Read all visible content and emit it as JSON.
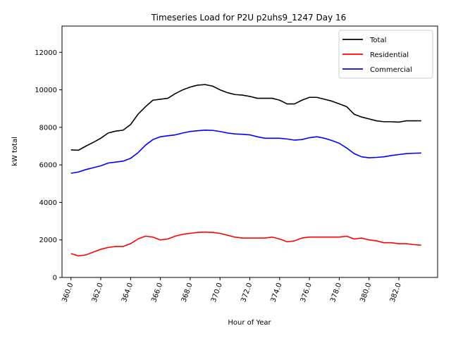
{
  "chart_data": {
    "type": "line",
    "title": "Timeseries Load for P2U p2uhs9_1247  Day 16",
    "xlabel": "Hour of Year",
    "ylabel": "kW total",
    "xlim": [
      359.4,
      384.6
    ],
    "ylim": [
      0,
      13400
    ],
    "x_ticks": [
      360,
      362,
      364,
      366,
      368,
      370,
      372,
      374,
      376,
      378,
      380,
      382
    ],
    "x_tick_labels": [
      "360.0",
      "362.0",
      "364.0",
      "366.0",
      "368.0",
      "370.0",
      "372.0",
      "374.0",
      "376.0",
      "378.0",
      "380.0",
      "382.0"
    ],
    "y_ticks": [
      0,
      2000,
      4000,
      6000,
      8000,
      10000,
      12000
    ],
    "y_tick_labels": [
      "0",
      "2000",
      "4000",
      "6000",
      "8000",
      "10000",
      "12000"
    ],
    "legend_position": "top-right",
    "x": [
      360.0,
      360.5,
      361.0,
      361.5,
      362.0,
      362.5,
      363.0,
      363.5,
      364.0,
      364.5,
      365.0,
      365.5,
      366.0,
      366.5,
      367.0,
      367.5,
      368.0,
      368.5,
      369.0,
      369.5,
      370.0,
      370.5,
      371.0,
      371.5,
      372.0,
      372.5,
      373.0,
      373.5,
      374.0,
      374.5,
      375.0,
      375.5,
      376.0,
      376.5,
      377.0,
      377.5,
      378.0,
      378.5,
      379.0,
      379.5,
      380.0,
      380.5,
      381.0,
      381.5,
      382.0,
      382.5,
      383.0,
      383.5
    ],
    "series": [
      {
        "name": "Total",
        "color": "#000000",
        "values": [
          6800,
          6780,
          7000,
          7200,
          7420,
          7700,
          7800,
          7850,
          8150,
          8700,
          9100,
          9450,
          9500,
          9550,
          9800,
          10000,
          10150,
          10250,
          10280,
          10200,
          10000,
          9850,
          9750,
          9720,
          9650,
          9550,
          9550,
          9550,
          9450,
          9250,
          9250,
          9450,
          9600,
          9600,
          9500,
          9400,
          9250,
          9100,
          8700,
          8550,
          8450,
          8350,
          8300,
          8300,
          8280,
          8350,
          8350,
          8350
        ]
      },
      {
        "name": "Residential",
        "color": "#ff0000",
        "values": [
          1270,
          1150,
          1200,
          1350,
          1500,
          1600,
          1650,
          1650,
          1800,
          2050,
          2200,
          2150,
          2000,
          2050,
          2200,
          2300,
          2350,
          2400,
          2420,
          2400,
          2350,
          2250,
          2150,
          2100,
          2100,
          2100,
          2100,
          2150,
          2050,
          1900,
          1950,
          2100,
          2150,
          2150,
          2150,
          2150,
          2150,
          2200,
          2050,
          2100,
          2000,
          1950,
          1850,
          1850,
          1800,
          1800,
          1750,
          1720
        ]
      },
      {
        "name": "Commercial",
        "color": "#0000ff",
        "values": [
          5550,
          5620,
          5750,
          5850,
          5950,
          6100,
          6150,
          6200,
          6350,
          6650,
          7050,
          7350,
          7500,
          7550,
          7600,
          7700,
          7780,
          7820,
          7850,
          7840,
          7780,
          7700,
          7650,
          7630,
          7600,
          7500,
          7420,
          7420,
          7420,
          7380,
          7320,
          7350,
          7450,
          7500,
          7420,
          7300,
          7150,
          6900,
          6600,
          6430,
          6380,
          6400,
          6430,
          6500,
          6550,
          6600,
          6620,
          6630
        ]
      }
    ]
  }
}
